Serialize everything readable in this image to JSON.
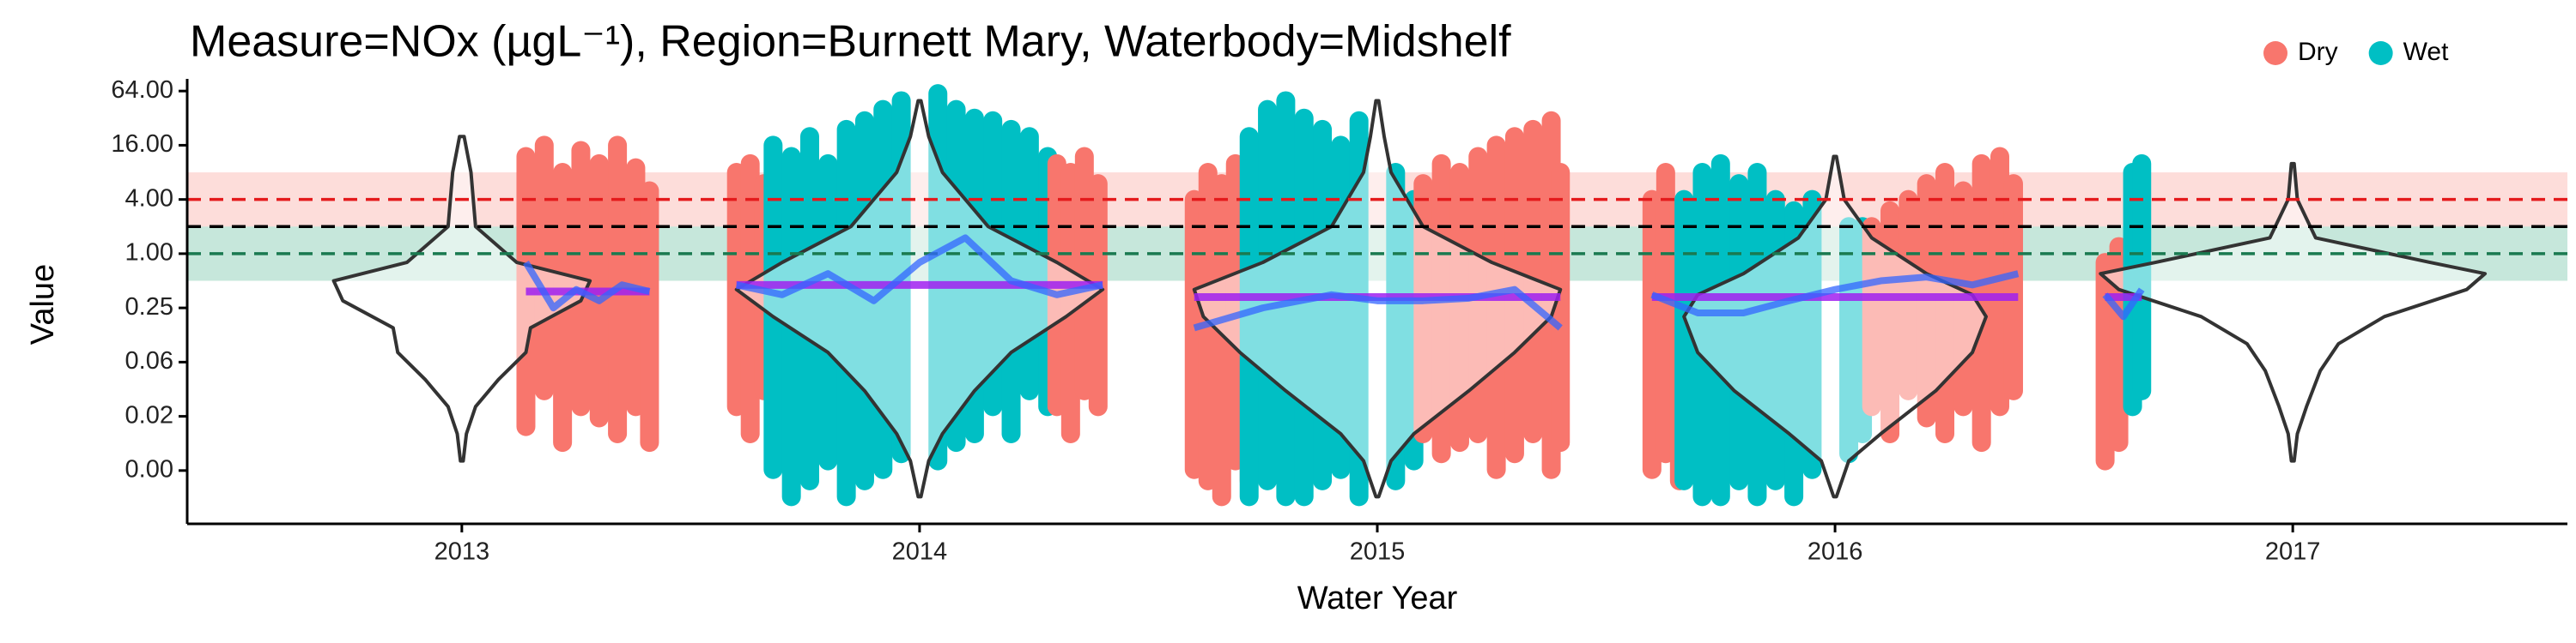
{
  "chart_data": {
    "type": "violin",
    "title": "Measure=NOx (µgL⁻¹), Region=Burnett Mary, Waterbody=Midshelf",
    "xlabel": "Water Year",
    "ylabel": "Value",
    "log_scale_y": true,
    "legend_position": "top-right",
    "legend": [
      {
        "name": "Dry",
        "color": "#F8766D"
      },
      {
        "name": "Wet",
        "color": "#00BFC4"
      }
    ],
    "xlim": [
      2012.4,
      2017.6
    ],
    "xticks": [
      2013,
      2014,
      2015,
      2016,
      2017
    ],
    "ylim": [
      0.001,
      80
    ],
    "yticks": [
      {
        "value": 0.00390625,
        "label": "0.00"
      },
      {
        "value": 0.015625,
        "label": "0.02"
      },
      {
        "value": 0.0625,
        "label": "0.06"
      },
      {
        "value": 0.25,
        "label": "0.25"
      },
      {
        "value": 1,
        "label": "1.00"
      },
      {
        "value": 4,
        "label": "4.00"
      },
      {
        "value": 16,
        "label": "16.00"
      },
      {
        "value": 64,
        "label": "64.00"
      }
    ],
    "bands": [
      {
        "low": 2,
        "high": 8,
        "color": "#F8766D"
      },
      {
        "low": 0.5,
        "high": 2,
        "color": "#1a9e6e"
      }
    ],
    "hlines": [
      {
        "value": 4,
        "color": "#e41a1c"
      },
      {
        "value": 2,
        "color": "#000000"
      },
      {
        "value": 1,
        "color": "#1a7a50"
      }
    ],
    "points": [
      {
        "season": "Dry",
        "x": [
          2013.14,
          2013.18,
          2013.22,
          2013.26,
          2013.3,
          2013.34,
          2013.38,
          2013.41
        ],
        "low": [
          0.012,
          0.03,
          0.008,
          0.02,
          0.015,
          0.01,
          0.02,
          0.008
        ],
        "high": [
          12,
          16,
          8,
          14,
          10,
          16,
          9,
          5
        ]
      },
      {
        "season": "Dry",
        "x": [
          2013.6,
          2013.63,
          2013.66
        ],
        "low": [
          0.02,
          0.01,
          0.03
        ],
        "high": [
          8,
          10,
          6
        ]
      },
      {
        "season": "Wet",
        "x": [
          2013.68,
          2013.72,
          2013.76,
          2013.8,
          2013.84,
          2013.88,
          2013.92,
          2013.96,
          2014.04,
          2014.08,
          2014.12,
          2014.16,
          2014.2,
          2014.24,
          2014.28
        ],
        "low": [
          0.004,
          0.002,
          0.003,
          0.005,
          0.002,
          0.003,
          0.004,
          0.006,
          0.005,
          0.008,
          0.01,
          0.02,
          0.01,
          0.03,
          0.02
        ],
        "high": [
          16,
          12,
          20,
          10,
          24,
          30,
          40,
          50,
          60,
          40,
          32,
          30,
          24,
          20,
          12
        ]
      },
      {
        "season": "Dry",
        "x": [
          2014.3,
          2014.33,
          2014.36,
          2014.39
        ],
        "low": [
          0.02,
          0.01,
          0.03,
          0.02
        ],
        "high": [
          10,
          8,
          12,
          6
        ]
      },
      {
        "season": "Dry",
        "x": [
          2014.6,
          2014.63,
          2014.66,
          2014.69,
          2014.72
        ],
        "low": [
          0.004,
          0.003,
          0.002,
          0.005,
          0.003
        ],
        "high": [
          4,
          8,
          6,
          10,
          5
        ]
      },
      {
        "season": "Wet",
        "x": [
          2014.72,
          2014.76,
          2014.8,
          2014.84,
          2014.88,
          2014.92,
          2014.96,
          2015.04,
          2015.08
        ],
        "low": [
          0.002,
          0.003,
          0.002,
          0.002,
          0.003,
          0.004,
          0.002,
          0.003,
          0.005
        ],
        "high": [
          20,
          40,
          50,
          32,
          24,
          16,
          30,
          8,
          4
        ]
      },
      {
        "season": "Dry",
        "x": [
          2015.1,
          2015.14,
          2015.18,
          2015.22,
          2015.26,
          2015.3,
          2015.34,
          2015.38,
          2015.4
        ],
        "low": [
          0.01,
          0.006,
          0.008,
          0.01,
          0.004,
          0.006,
          0.01,
          0.004,
          0.008
        ],
        "high": [
          6,
          10,
          8,
          12,
          16,
          20,
          24,
          30,
          8
        ]
      },
      {
        "season": "Dry",
        "x": [
          2015.6,
          2015.63,
          2015.66
        ],
        "low": [
          0.004,
          0.006,
          0.003
        ],
        "high": [
          4,
          8,
          3
        ]
      },
      {
        "season": "Wet",
        "x": [
          2015.67,
          2015.71,
          2015.75,
          2015.79,
          2015.83,
          2015.87,
          2015.91,
          2015.95,
          2016.03,
          2016.06
        ],
        "low": [
          0.003,
          0.002,
          0.002,
          0.003,
          0.002,
          0.003,
          0.002,
          0.004,
          0.006,
          0.01
        ],
        "high": [
          4,
          8,
          10,
          6,
          8,
          4,
          3,
          4,
          2,
          2
        ]
      },
      {
        "season": "Dry",
        "x": [
          2016.08,
          2016.12,
          2016.16,
          2016.2,
          2016.24,
          2016.28,
          2016.32,
          2016.36,
          2016.39
        ],
        "low": [
          0.02,
          0.01,
          0.03,
          0.015,
          0.01,
          0.02,
          0.008,
          0.02,
          0.03
        ],
        "high": [
          2,
          3,
          4,
          6,
          8,
          5,
          10,
          12,
          6
        ]
      },
      {
        "season": "Dry",
        "x": [
          2016.59,
          2016.62
        ],
        "low": [
          0.005,
          0.008
        ],
        "high": [
          0.8,
          1.2
        ]
      },
      {
        "season": "Wet",
        "x": [
          2016.65,
          2016.67
        ],
        "low": [
          0.02,
          0.03
        ],
        "high": [
          8,
          10
        ]
      }
    ],
    "violins": [
      {
        "x": 2013,
        "y": [
          0.005,
          0.01,
          0.02,
          0.04,
          0.08,
          0.15,
          0.3,
          0.5,
          0.8,
          2,
          8,
          20
        ],
        "width": [
          0.003,
          0.01,
          0.03,
          0.08,
          0.14,
          0.15,
          0.26,
          0.28,
          0.12,
          0.03,
          0.02,
          0.005
        ]
      },
      {
        "x": 2014,
        "y": [
          0.002,
          0.005,
          0.01,
          0.03,
          0.08,
          0.2,
          0.4,
          0.8,
          2,
          8,
          20,
          50
        ],
        "width": [
          0.003,
          0.02,
          0.05,
          0.12,
          0.2,
          0.32,
          0.4,
          0.3,
          0.15,
          0.05,
          0.02,
          0.003
        ]
      },
      {
        "x": 2015,
        "y": [
          0.002,
          0.005,
          0.01,
          0.03,
          0.08,
          0.2,
          0.4,
          0.8,
          2,
          8,
          20,
          50
        ],
        "width": [
          0.003,
          0.03,
          0.08,
          0.2,
          0.3,
          0.38,
          0.4,
          0.25,
          0.1,
          0.03,
          0.015,
          0.003
        ]
      },
      {
        "x": 2016,
        "y": [
          0.002,
          0.005,
          0.01,
          0.03,
          0.08,
          0.2,
          0.35,
          0.6,
          1.5,
          4,
          12
        ],
        "width": [
          0.003,
          0.03,
          0.1,
          0.22,
          0.3,
          0.33,
          0.3,
          0.2,
          0.08,
          0.02,
          0.003
        ]
      },
      {
        "x": 2017,
        "y": [
          0.005,
          0.01,
          0.02,
          0.05,
          0.1,
          0.2,
          0.4,
          0.6,
          0.8,
          1.5,
          4,
          10
        ],
        "width": [
          0.003,
          0.01,
          0.03,
          0.06,
          0.1,
          0.2,
          0.38,
          0.42,
          0.3,
          0.05,
          0.01,
          0.003
        ]
      }
    ],
    "means": {
      "color": "#a020f0",
      "segments": [
        {
          "x": [
            2013.14,
            2013.41
          ],
          "value": 0.38
        },
        {
          "x": [
            2013.6,
            2014.4
          ],
          "value": 0.45
        },
        {
          "x": [
            2014.6,
            2015.4
          ],
          "value": 0.33
        },
        {
          "x": [
            2015.6,
            2016.4
          ],
          "value": 0.33
        },
        {
          "x": [
            2016.59,
            2016.67
          ],
          "value": 0.33
        }
      ]
    },
    "smooth": {
      "color": "#3366ff",
      "lines": [
        {
          "x": [
            2013.14,
            2013.2,
            2013.25,
            2013.3,
            2013.35,
            2013.41
          ],
          "y": [
            0.8,
            0.25,
            0.4,
            0.3,
            0.45,
            0.38
          ]
        },
        {
          "x": [
            2013.6,
            2013.7,
            2013.8,
            2013.9,
            2014.0,
            2014.1,
            2014.2,
            2014.3,
            2014.4
          ],
          "y": [
            0.45,
            0.35,
            0.6,
            0.3,
            0.8,
            1.5,
            0.5,
            0.35,
            0.45
          ]
        },
        {
          "x": [
            2014.6,
            2014.75,
            2014.9,
            2015.0,
            2015.1,
            2015.2,
            2015.3,
            2015.4
          ],
          "y": [
            0.15,
            0.25,
            0.35,
            0.3,
            0.3,
            0.32,
            0.4,
            0.15
          ]
        },
        {
          "x": [
            2015.6,
            2015.7,
            2015.8,
            2015.9,
            2016.0,
            2016.1,
            2016.2,
            2016.3,
            2016.4
          ],
          "y": [
            0.35,
            0.22,
            0.22,
            0.3,
            0.4,
            0.5,
            0.55,
            0.45,
            0.6
          ]
        },
        {
          "x": [
            2016.59,
            2016.63,
            2016.67
          ],
          "y": [
            0.35,
            0.2,
            0.4
          ]
        }
      ]
    }
  }
}
